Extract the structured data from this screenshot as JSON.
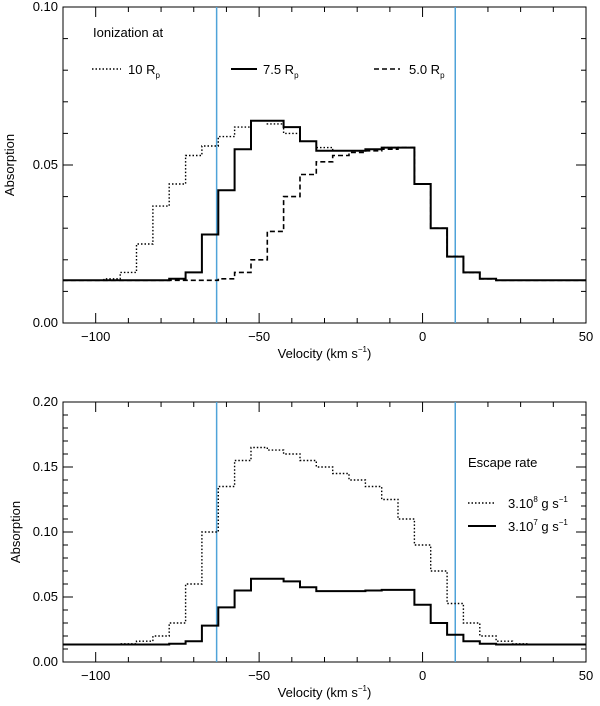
{
  "chart_data": [
    {
      "type": "line",
      "title": "",
      "xlabel": "Velocity (km s",
      "xlabel_sup": "−1",
      "xlabel_close": ")",
      "ylabel": "Absorption",
      "xlim": [
        -110,
        50
      ],
      "ylim": [
        0.0,
        0.1
      ],
      "xticks": [
        -100,
        -50,
        0,
        50
      ],
      "xtick_labels": [
        "−100",
        "−50",
        "0",
        "50"
      ],
      "yticks": [
        0.0,
        0.05,
        0.1
      ],
      "ytick_labels": [
        "0.00",
        "0.05",
        "0.10"
      ],
      "vlines": [
        -63,
        10
      ],
      "vline_color": "#4fa3d9",
      "legend_title": "Ionization at",
      "legend_location": "top",
      "series": [
        {
          "name": "10 R",
          "name_sub": "p",
          "style": "dotted",
          "x": [
            -110,
            -105,
            -100,
            -95,
            -90,
            -85,
            -80,
            -75,
            -70,
            -65,
            -60,
            -55,
            -50,
            -45,
            -40,
            -35,
            -30,
            -25,
            -20,
            -15,
            -10,
            -5,
            0,
            5,
            10,
            15,
            20,
            25,
            30,
            35,
            40,
            45,
            50
          ],
          "values": [
            0.0135,
            0.0135,
            0.0135,
            0.014,
            0.016,
            0.025,
            0.037,
            0.044,
            0.053,
            0.056,
            0.059,
            0.062,
            0.064,
            0.063,
            0.06,
            0.0575,
            0.0555,
            0.0545,
            0.0545,
            0.055,
            0.0555,
            0.0555,
            0.044,
            0.03,
            0.021,
            0.016,
            0.014,
            0.0135,
            0.0135,
            0.0135,
            0.0135,
            0.0135,
            0.0135
          ]
        },
        {
          "name": "7.5 R",
          "name_sub": "p",
          "style": "solid",
          "x": [
            -110,
            -105,
            -100,
            -95,
            -90,
            -85,
            -80,
            -75,
            -70,
            -65,
            -60,
            -55,
            -50,
            -45,
            -40,
            -35,
            -30,
            -25,
            -20,
            -15,
            -10,
            -5,
            0,
            5,
            10,
            15,
            20,
            25,
            30,
            35,
            40,
            45,
            50
          ],
          "values": [
            0.0135,
            0.0135,
            0.0135,
            0.0135,
            0.0135,
            0.0135,
            0.0135,
            0.014,
            0.016,
            0.028,
            0.042,
            0.055,
            0.064,
            0.064,
            0.062,
            0.0575,
            0.0545,
            0.0545,
            0.0545,
            0.055,
            0.0555,
            0.0555,
            0.044,
            0.03,
            0.021,
            0.016,
            0.014,
            0.0135,
            0.0135,
            0.0135,
            0.0135,
            0.0135,
            0.0135
          ]
        },
        {
          "name": "5.0 R",
          "name_sub": "p",
          "style": "dashed",
          "x": [
            -110,
            -105,
            -100,
            -95,
            -90,
            -85,
            -80,
            -75,
            -70,
            -65,
            -60,
            -55,
            -50,
            -45,
            -40,
            -35,
            -30,
            -25,
            -20,
            -15,
            -10,
            -5,
            0,
            5,
            10,
            15,
            20,
            25,
            30,
            35,
            40,
            45,
            50
          ],
          "values": [
            0.0135,
            0.0135,
            0.0135,
            0.0135,
            0.0135,
            0.0135,
            0.0135,
            0.0135,
            0.0135,
            0.0135,
            0.014,
            0.016,
            0.02,
            0.029,
            0.04,
            0.047,
            0.051,
            0.053,
            0.054,
            0.0545,
            0.055,
            0.0555,
            0.044,
            0.03,
            0.021,
            0.016,
            0.014,
            0.0135,
            0.0135,
            0.0135,
            0.0135,
            0.0135,
            0.0135
          ]
        }
      ]
    },
    {
      "type": "line",
      "title": "",
      "xlabel": "Velocity (km s",
      "xlabel_sup": "−1",
      "xlabel_close": ")",
      "ylabel": "Absorption",
      "xlim": [
        -110,
        50
      ],
      "ylim": [
        0.0,
        0.2
      ],
      "xticks": [
        -100,
        -50,
        0,
        50
      ],
      "xtick_labels": [
        "−100",
        "−50",
        "0",
        "50"
      ],
      "yticks": [
        0.0,
        0.05,
        0.1,
        0.15,
        0.2
      ],
      "ytick_labels": [
        "0.00",
        "0.05",
        "0.10",
        "0.15",
        "0.20"
      ],
      "vlines": [
        -63,
        10
      ],
      "vline_color": "#4fa3d9",
      "legend_title": "Escape rate",
      "legend_location": "right",
      "series": [
        {
          "name": "3.10",
          "name_sup": "8",
          "name_unit": " g s",
          "name_unit_sup": "−1",
          "style": "dotted",
          "x": [
            -110,
            -105,
            -100,
            -95,
            -90,
            -85,
            -80,
            -75,
            -70,
            -65,
            -60,
            -55,
            -50,
            -45,
            -40,
            -35,
            -30,
            -25,
            -20,
            -15,
            -10,
            -5,
            0,
            5,
            10,
            15,
            20,
            25,
            30,
            35,
            40,
            45,
            50
          ],
          "values": [
            0.0135,
            0.0135,
            0.0135,
            0.0135,
            0.014,
            0.016,
            0.02,
            0.03,
            0.06,
            0.1,
            0.135,
            0.155,
            0.165,
            0.163,
            0.16,
            0.155,
            0.15,
            0.145,
            0.14,
            0.135,
            0.125,
            0.11,
            0.09,
            0.07,
            0.045,
            0.03,
            0.02,
            0.016,
            0.014,
            0.0135,
            0.0135,
            0.0135,
            0.0135
          ]
        },
        {
          "name": "3.10",
          "name_sup": "7",
          "name_unit": " g s",
          "name_unit_sup": "−1",
          "style": "solid",
          "x": [
            -110,
            -105,
            -100,
            -95,
            -90,
            -85,
            -80,
            -75,
            -70,
            -65,
            -60,
            -55,
            -50,
            -45,
            -40,
            -35,
            -30,
            -25,
            -20,
            -15,
            -10,
            -5,
            0,
            5,
            10,
            15,
            20,
            25,
            30,
            35,
            40,
            45,
            50
          ],
          "values": [
            0.0135,
            0.0135,
            0.0135,
            0.0135,
            0.0135,
            0.0135,
            0.0135,
            0.014,
            0.016,
            0.028,
            0.042,
            0.055,
            0.064,
            0.064,
            0.062,
            0.0575,
            0.0545,
            0.0545,
            0.0545,
            0.055,
            0.0555,
            0.0555,
            0.044,
            0.03,
            0.021,
            0.016,
            0.014,
            0.0135,
            0.0135,
            0.0135,
            0.0135,
            0.0135,
            0.0135
          ]
        }
      ]
    }
  ]
}
